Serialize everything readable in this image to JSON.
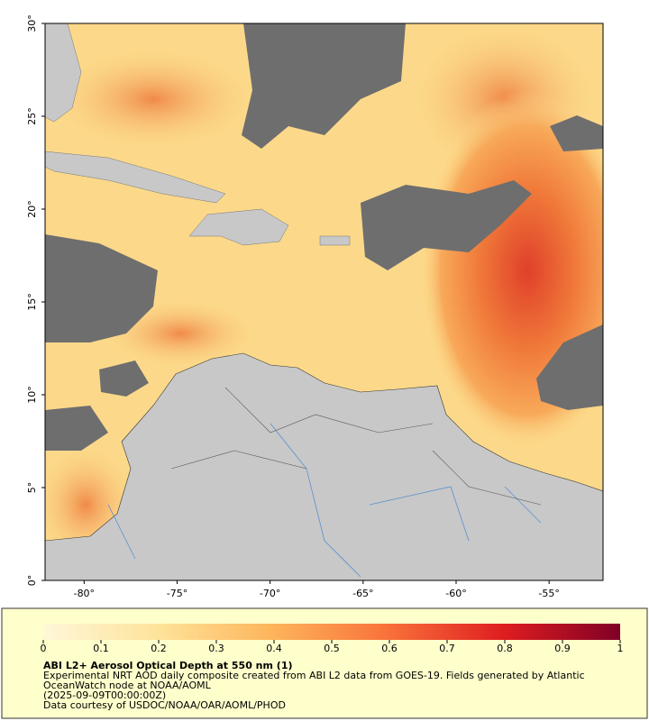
{
  "chart_data": {
    "type": "map",
    "xlim": [
      -82.1,
      -52.1
    ],
    "ylim": [
      0,
      30
    ],
    "xticks": [
      {
        "value": -80,
        "label": "-80°"
      },
      {
        "value": -75,
        "label": "-75°"
      },
      {
        "value": -70,
        "label": "-70°"
      },
      {
        "value": -65,
        "label": "-65°"
      },
      {
        "value": -60,
        "label": "-60°"
      },
      {
        "value": -55,
        "label": "-55°"
      }
    ],
    "yticks": [
      {
        "value": 0,
        "label": "0°"
      },
      {
        "value": 5,
        "label": "5°"
      },
      {
        "value": 10,
        "label": "10°"
      },
      {
        "value": 15,
        "label": "15°"
      },
      {
        "value": 20,
        "label": "20°"
      },
      {
        "value": 25,
        "label": "25°"
      },
      {
        "value": 30,
        "label": "30°"
      }
    ],
    "colorbar": {
      "lim": [
        0,
        1
      ],
      "ticks": [
        0,
        0.1,
        0.2,
        0.3,
        0.4,
        0.5,
        0.6,
        0.7,
        0.8,
        0.9,
        1
      ]
    },
    "legend": {
      "title": "ABI L2+ Aerosol Optical Depth at 550 nm (1)",
      "lines": [
        "Experimental NRT AOD daily composite created from ABI L2 data from GOES-19. Fields generated by Atlantic",
        "OceanWatch node at NOAA/AOML",
        "(2025-09-09T00:00:00Z)",
        "Data courtesy of USDOC/NOAA/OAR/AOML/PHOD"
      ]
    }
  }
}
